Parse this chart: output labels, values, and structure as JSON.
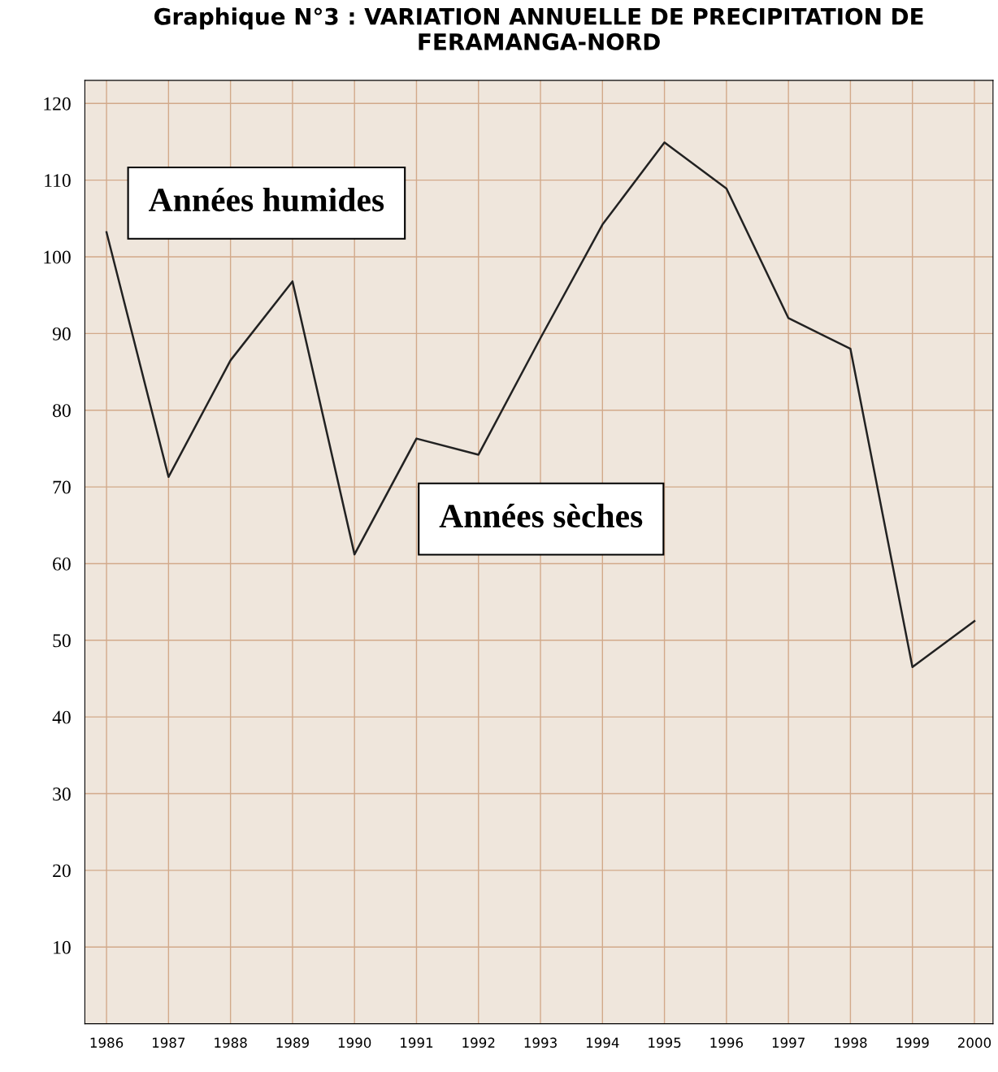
{
  "chart_data": {
    "type": "line",
    "title": "Graphique N°3 : VARIATION ANNUELLE DE PRECIPITATION DE FERAMANGA-NORD",
    "categories": [
      "1986",
      "1987",
      "1988",
      "1989",
      "1990",
      "1991",
      "1992",
      "1993",
      "1994",
      "1995",
      "1996",
      "1997",
      "1998",
      "1999",
      "2000"
    ],
    "series": [
      {
        "color": "#222222",
        "values": [
          103.2,
          71.3,
          86.5,
          96.8,
          61.2,
          76.3,
          74.2,
          89.4,
          104.2,
          114.9,
          108.9,
          92.0,
          88.0,
          46.5,
          52.5
        ]
      }
    ],
    "ylim": [
      0,
      123
    ],
    "yticks": [
      10,
      20,
      30,
      40,
      50,
      60,
      70,
      80,
      90,
      100,
      110,
      120
    ],
    "grid": true,
    "marker": "none",
    "line_style": "solid",
    "annotations": [
      "Années humides",
      "Années sèches"
    ]
  }
}
